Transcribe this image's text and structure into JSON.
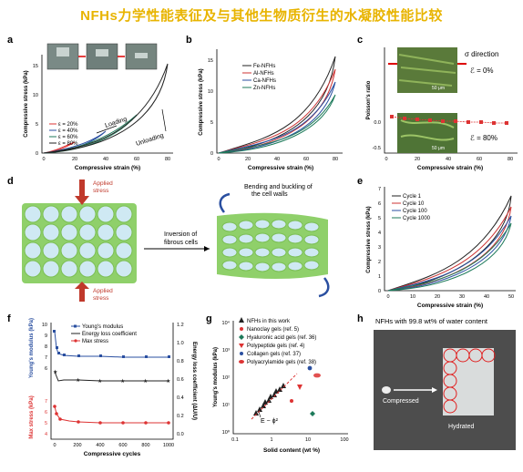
{
  "title": "NFHs力学性能表征及与其他生物质衍生的水凝胶性能比较",
  "colors": {
    "title": "#e8b400"
  },
  "panels": {
    "a": {
      "label": "a",
      "legend": [
        "ε = 20%",
        "ε = 40%",
        "ε = 60%",
        "ε = 80%"
      ],
      "annotations": {
        "loading": "Loading",
        "unloading": "Unloading"
      },
      "ylabel": "Compressive stress (kPa)",
      "xlabel": "Compressive strain (%)",
      "xticks": [
        "0",
        "20",
        "40",
        "60",
        "80"
      ],
      "yticks": [
        "0",
        "5",
        "10",
        "15"
      ]
    },
    "b": {
      "label": "b",
      "legend": [
        "Fe-NFHs",
        "Al-NFHs",
        "Ca-NFHs",
        "Zn-NFHs"
      ],
      "ylabel": "Compressive stress (kPa)",
      "xlabel": "Compressive strain (%)",
      "xticks": [
        "0",
        "20",
        "40",
        "60",
        "80"
      ],
      "yticks": [
        "0",
        "5",
        "10",
        "15"
      ]
    },
    "c": {
      "label": "c",
      "annotations": {
        "direction": "σ direction",
        "eps0": "ℰ = 0%",
        "eps80": "ℰ = 80%",
        "scale1": "50 μm",
        "scale2": "50 μm"
      },
      "ylabel": "Poisson's ratio",
      "xlabel": "Compressive strain (%)",
      "xticks": [
        "0",
        "20",
        "40",
        "60",
        "80"
      ],
      "yticks": [
        "0.0",
        "-0.5"
      ]
    },
    "d": {
      "label": "d",
      "applied_top": [
        "Applied",
        "stress"
      ],
      "applied_bottom": [
        "Applied",
        "stress"
      ],
      "inversion": [
        "Inversion of",
        "fibrous cells"
      ],
      "bending": [
        "Bending and buckling of",
        "the cell walls"
      ]
    },
    "e": {
      "label": "e",
      "legend": [
        "Cycle 1",
        "Cycle 10",
        "Cycle 100",
        "Cycle 1000"
      ],
      "ylabel": "Compressive stress (kPa)",
      "xlabel": "Compressive strain (%)",
      "xticks": [
        "0",
        "10",
        "20",
        "30",
        "40",
        "50"
      ],
      "yticks": [
        "0",
        "1",
        "2",
        "3",
        "4",
        "5",
        "6",
        "7"
      ]
    },
    "f": {
      "label": "f",
      "legend": [
        "Young's modulus",
        "Energy loss coefficient",
        "Max stress"
      ],
      "ylabel_left_top": "Young's modulus (kPa)",
      "ylabel_left_bottom": "Max stress (kPa)",
      "ylabel_right": "Energy loss coefficient (ΔU/U)",
      "xlabel": "Compressive cycles",
      "xticks": [
        "0",
        "200",
        "400",
        "600",
        "800",
        "1000"
      ],
      "yticks_top": [
        "6",
        "7",
        "8",
        "9",
        "10"
      ],
      "yticks_bottom": [
        "4",
        "5",
        "6",
        "7"
      ],
      "yticks_right": [
        "0.0",
        "0.2",
        "0.4",
        "0.6",
        "0.8",
        "1.0",
        "1.2"
      ]
    },
    "g": {
      "label": "g",
      "legend": [
        "NFHs in this work",
        "Nanoclay gels (ref. 5)",
        "Hyaluronic acid gels (ref. 36)",
        "Polypeptide gels (ref. 4)",
        "Collagen gels (ref. 37)",
        "Polyacrylamide gels (ref. 38)"
      ],
      "annotation": "E ~ ϕ²",
      "ylabel": "Young's modulus (kPa)",
      "xlabel": "Solid content (wt %)",
      "xticks": [
        "0.1",
        "1",
        "10",
        "100"
      ],
      "yticks": [
        "10⁰",
        "10¹",
        "10²",
        "10³",
        "10⁴"
      ]
    },
    "h": {
      "label": "h",
      "caption": "NFHs with 99.8 wt% of water content",
      "compressed": "Compressed",
      "hydrated": "Hydrated"
    }
  }
}
